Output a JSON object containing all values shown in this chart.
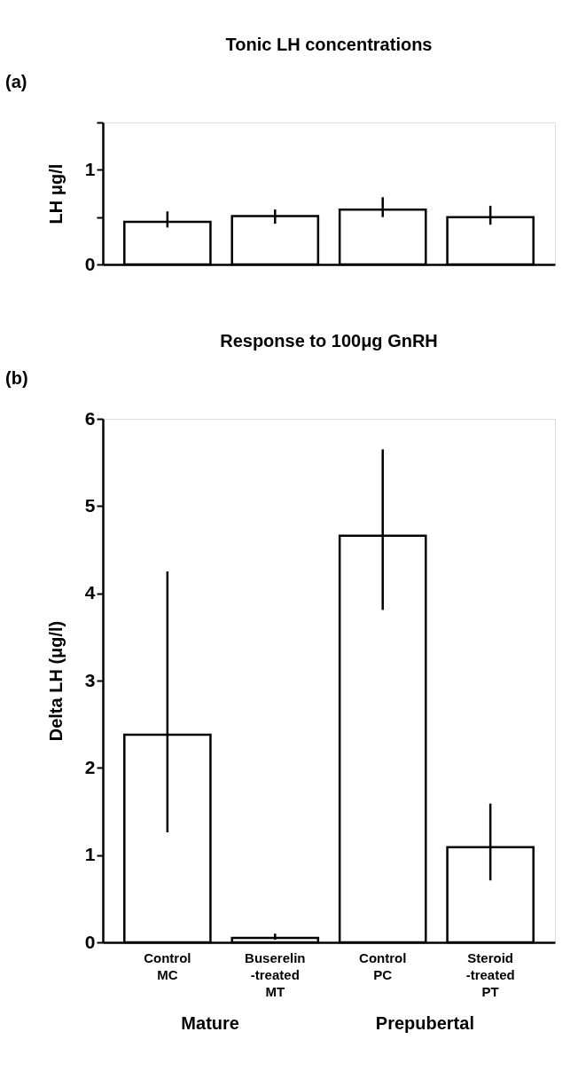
{
  "chart_data": [
    {
      "type": "bar",
      "title": "Tonic LH concentrations",
      "ylabel": "LH  μg/l",
      "annotations": [
        "(a)"
      ],
      "categories": [
        null,
        null,
        null,
        null
      ],
      "values": [
        0.45,
        0.51,
        0.58,
        0.5
      ],
      "errors": [
        [
          0.39,
          0.56
        ],
        [
          0.43,
          0.58
        ],
        [
          0.5,
          0.71
        ],
        [
          0.42,
          0.62
        ]
      ],
      "color": "#ffffff",
      "ylim": [
        0,
        1.5
      ],
      "yticks": [
        0,
        {
          "value": 0.5,
          "label": null
        },
        1,
        {
          "value": 1.5,
          "label": null
        }
      ],
      "grid": false
    },
    {
      "type": "bar",
      "title": "Response to 100μg GnRH",
      "ylabel": "Delta LH (μg/l)",
      "annotations": [
        "(b)",
        "Mature",
        "Prepubertal"
      ],
      "categories": [
        "Control\n\nMC",
        "Buserelin\n-treated\nMT",
        "Control\n\nPC",
        "Steroid\n-treated\nPT"
      ],
      "values": [
        2.38,
        0.05,
        4.66,
        1.09
      ],
      "errors": [
        [
          1.26,
          4.25
        ],
        [
          0.03,
          0.1
        ],
        [
          3.81,
          5.65
        ],
        [
          0.71,
          1.59
        ]
      ],
      "color": "#ffffff",
      "ylim": [
        0,
        6
      ],
      "yticks": [
        0,
        1,
        2,
        3,
        4,
        5,
        6
      ],
      "grid": false
    }
  ]
}
